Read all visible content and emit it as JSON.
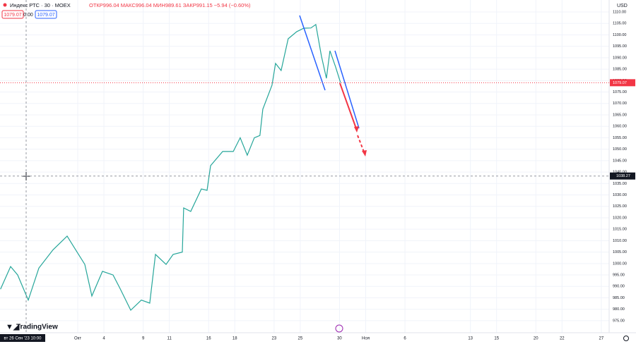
{
  "header": {
    "symbol": "Индекс РТС · 30 · MOEX",
    "ohlc": "ОТКР996.04 МАКС996.04 МИН989.61 ЗАКР991.15 −5.94 (−0.60%)",
    "box_price": "1079.07",
    "box_change": "0.00",
    "box_price2": "1079.07"
  },
  "currency": "USD",
  "logo": "TradingView",
  "cursor_date": "вт 26 Сен '23 10:00",
  "chart_data": {
    "type": "line",
    "x": [
      -5.9,
      -5.13,
      -4.59,
      -3.78,
      -2.97,
      -1.89,
      -0.81,
      -0.27,
      0.54,
      1.08,
      1.89,
      2.7,
      3.24,
      4.05,
      4.86,
      5.5,
      5.94,
      6.75,
      7.29,
      7.99,
      8.09,
      8.63,
      9.44,
      9.88,
      10.15,
      11.07,
      11.88,
      12.41,
      12.95,
      13.49,
      13.92,
      14.14,
      14.84,
      15.11,
      15.54,
      16.08,
      16.73,
      17.27,
      17.81,
      18.19,
      18.62,
      19.0,
      19.27,
      19.7,
      20.08
    ],
    "series": [
      {
        "name": "Индекс РТС",
        "color": "#26a69a",
        "values": [
          988.8,
          998.7,
          995,
          984,
          998,
          1006,
          1012,
          1007,
          999.6,
          985.8,
          996.6,
          995,
          989,
          979.6,
          984,
          982.7,
          1004,
          999.6,
          1004,
          1005,
          1024.3,
          1022.8,
          1032.6,
          1032,
          1042.8,
          1049,
          1049,
          1055,
          1047.4,
          1055,
          1056,
          1067.5,
          1078,
          1087.5,
          1084.4,
          1098.3,
          1101.4,
          1102.9,
          1103,
          1104.5,
          1090.6,
          1081,
          1093,
          1086,
          1079.07
        ]
      }
    ],
    "xlim": [
      -5.94,
      40.6
    ],
    "ylim": [
      969.74,
      1115.24
    ],
    "xticks": [
      {
        "value": 0,
        "label": "Окт"
      },
      {
        "value": 2,
        "label": "4"
      },
      {
        "value": 5,
        "label": "9"
      },
      {
        "value": 7,
        "label": "11"
      },
      {
        "value": 10,
        "label": "16"
      },
      {
        "value": 12,
        "label": "18"
      },
      {
        "value": 15,
        "label": "23"
      },
      {
        "value": 17,
        "label": "25"
      },
      {
        "value": 20,
        "label": "30"
      },
      {
        "value": 22,
        "label": "Ноя"
      },
      {
        "value": 25,
        "label": "6"
      },
      {
        "value": 30,
        "label": "13"
      },
      {
        "value": 32,
        "label": "15"
      },
      {
        "value": 35,
        "label": "20"
      },
      {
        "value": 37,
        "label": "22"
      },
      {
        "value": 40,
        "label": "27"
      }
    ],
    "yticks": [
      {
        "value": 975,
        "label": "975.00"
      },
      {
        "value": 980,
        "label": "980.00"
      },
      {
        "value": 985,
        "label": "985.00"
      },
      {
        "value": 990,
        "label": "990.00"
      },
      {
        "value": 995,
        "label": "995.00"
      },
      {
        "value": 1000,
        "label": "1000.00"
      },
      {
        "value": 1005,
        "label": "1005.00"
      },
      {
        "value": 1010,
        "label": "1010.00"
      },
      {
        "value": 1015,
        "label": "1015.00"
      },
      {
        "value": 1020,
        "label": "1020.00"
      },
      {
        "value": 1025,
        "label": "1025.00"
      },
      {
        "value": 1030,
        "label": "1030.00"
      },
      {
        "value": 1035,
        "label": "1035.00"
      },
      {
        "value": 1040,
        "label": "1040.00"
      },
      {
        "value": 1045,
        "label": "1045.00"
      },
      {
        "value": 1050,
        "label": "1050.00"
      },
      {
        "value": 1055,
        "label": "1055.00"
      },
      {
        "value": 1060,
        "label": "1060.00"
      },
      {
        "value": 1065,
        "label": "1065.00"
      },
      {
        "value": 1070,
        "label": "1070.00"
      },
      {
        "value": 1075,
        "label": "1075.00"
      },
      {
        "value": 1080,
        "label": "1080.00"
      },
      {
        "value": 1085,
        "label": "1085.00"
      },
      {
        "value": 1090,
        "label": "1090.00"
      },
      {
        "value": 1095,
        "label": "1095.00"
      },
      {
        "value": 1100,
        "label": "1100.00"
      },
      {
        "value": 1105,
        "label": "1105.00"
      },
      {
        "value": 1110,
        "label": "1110.00"
      }
    ],
    "grid": true,
    "last_price": {
      "value": 1079.07,
      "label": "1079.07"
    },
    "crosshair": {
      "value": 1038.27,
      "label": "1038.27"
    }
  }
}
